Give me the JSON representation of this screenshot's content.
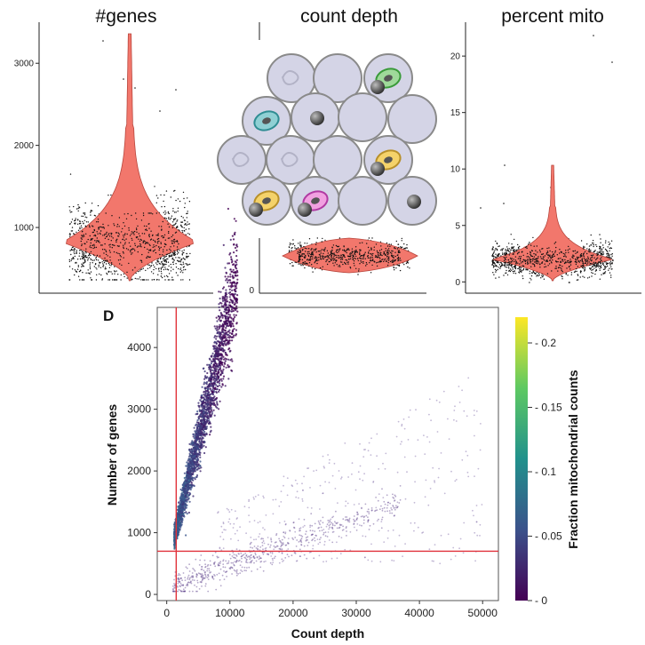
{
  "panel_label": "D",
  "colors": {
    "violin_fill": "#f2776c",
    "violin_stroke": "#b8463d",
    "threshold_line": "#e0313a",
    "cell_fill": "#d4d4e6",
    "cell_stroke": "#8a8a8a"
  },
  "chart_data": [
    {
      "type": "violin",
      "title": "#genes",
      "yticks": [
        1000,
        2000,
        3000
      ],
      "ylim": [
        200,
        3500
      ],
      "median": 820,
      "points_range": [
        200,
        3400
      ]
    },
    {
      "type": "violin",
      "title": "count depth",
      "yticks": [
        0
      ],
      "note_illustration": "droplet-cells"
    },
    {
      "type": "violin",
      "title": "percent mito",
      "yticks": [
        0,
        5,
        10,
        15,
        20
      ],
      "ylim": [
        -1,
        23
      ],
      "median": 2,
      "points_range": [
        0,
        22
      ]
    },
    {
      "type": "scatter",
      "xlabel": "Count depth",
      "ylabel": "Number of genes",
      "xticks": [
        0,
        10000,
        20000,
        30000,
        40000,
        50000
      ],
      "yticks": [
        0,
        1000,
        2000,
        3000,
        4000
      ],
      "xlim": [
        -1500,
        52500
      ],
      "ylim": [
        -100,
        4650
      ],
      "thresholds": {
        "x": 1500,
        "y": 700
      },
      "colorbar": {
        "label": "Fraction mitochondrial counts",
        "ticks": [
          "0",
          "0.05",
          "0.1",
          "0.15",
          "0.2"
        ],
        "range": [
          0,
          0.22
        ],
        "colors": [
          "#440154",
          "#3b528b",
          "#21918c",
          "#5ec962",
          "#fde725"
        ]
      }
    }
  ]
}
